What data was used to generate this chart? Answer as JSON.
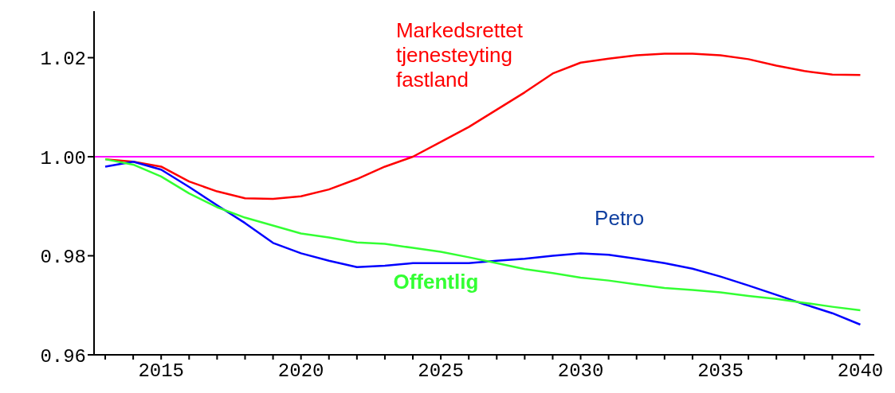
{
  "chart_data": {
    "type": "line",
    "x": [
      2013,
      2014,
      2015,
      2016,
      2017,
      2018,
      2019,
      2020,
      2021,
      2022,
      2023,
      2024,
      2025,
      2026,
      2027,
      2028,
      2029,
      2030,
      2031,
      2032,
      2033,
      2034,
      2035,
      2036,
      2037,
      2038,
      2039,
      2040
    ],
    "series": [
      {
        "name": "Markedsrettet tjenesteyting fastland",
        "color": "#ff0000",
        "values": [
          0.9995,
          0.999,
          0.998,
          0.995,
          0.993,
          0.9916,
          0.9915,
          0.992,
          0.9934,
          0.9955,
          0.998,
          1.0,
          1.003,
          1.006,
          1.0095,
          1.013,
          1.0168,
          1.019,
          1.0198,
          1.0205,
          1.0208,
          1.0208,
          1.0205,
          1.0197,
          1.0184,
          1.0173,
          1.0166,
          1.0165
        ]
      },
      {
        "name": "Petro",
        "color": "#0000ff",
        "values": [
          0.998,
          0.999,
          0.9974,
          0.9939,
          0.9902,
          0.9866,
          0.9826,
          0.9805,
          0.979,
          0.9777,
          0.978,
          0.9785,
          0.9785,
          0.9785,
          0.979,
          0.9794,
          0.98,
          0.9805,
          0.9802,
          0.9794,
          0.9785,
          0.9774,
          0.9758,
          0.974,
          0.9721,
          0.9702,
          0.9684,
          0.9661
        ]
      },
      {
        "name": "Offentlig",
        "color": "#33ff33",
        "values": [
          0.9995,
          0.9984,
          0.996,
          0.9926,
          0.9898,
          0.9877,
          0.9861,
          0.9845,
          0.9837,
          0.9827,
          0.9824,
          0.9816,
          0.9808,
          0.9797,
          0.9785,
          0.9773,
          0.9765,
          0.9756,
          0.975,
          0.9742,
          0.9735,
          0.9731,
          0.9726,
          0.9719,
          0.9713,
          0.9705,
          0.9697,
          0.969
        ]
      }
    ],
    "ref_lines": [
      {
        "axis": "y",
        "value": 1.0,
        "color": "#ff00ff"
      }
    ],
    "xlim": [
      2012.6,
      2040.5
    ],
    "xticks": [
      {
        "value": 2013,
        "label": null
      },
      {
        "value": 2014,
        "label": null
      },
      2015,
      {
        "value": 2016,
        "label": null
      },
      {
        "value": 2017,
        "label": null
      },
      {
        "value": 2018,
        "label": null
      },
      {
        "value": 2019,
        "label": null
      },
      2020,
      {
        "value": 2021,
        "label": null
      },
      {
        "value": 2022,
        "label": null
      },
      {
        "value": 2023,
        "label": null
      },
      {
        "value": 2024,
        "label": null
      },
      2025,
      {
        "value": 2026,
        "label": null
      },
      {
        "value": 2027,
        "label": null
      },
      {
        "value": 2028,
        "label": null
      },
      {
        "value": 2029,
        "label": null
      },
      2030,
      {
        "value": 2031,
        "label": null
      },
      {
        "value": 2032,
        "label": null
      },
      {
        "value": 2033,
        "label": null
      },
      {
        "value": 2034,
        "label": null
      },
      2035,
      {
        "value": 2036,
        "label": null
      },
      {
        "value": 2037,
        "label": null
      },
      {
        "value": 2038,
        "label": null
      },
      {
        "value": 2039,
        "label": null
      },
      2040
    ],
    "ylim": [
      0.96,
      1.0294
    ],
    "yticks": [
      {
        "value": 0.96,
        "label": "0.96"
      },
      {
        "value": 0.98,
        "label": "0.98"
      },
      {
        "value": 1.0,
        "label": "1.00"
      },
      {
        "value": 1.02,
        "label": "1.02"
      }
    ],
    "grid": false,
    "legend": false,
    "marker": "none",
    "line_style": "solid"
  }
}
